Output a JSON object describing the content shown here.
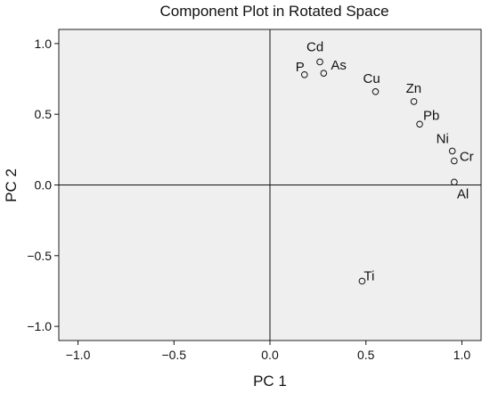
{
  "chart_data": {
    "type": "scatter",
    "title": "Component Plot in Rotated Space",
    "xlabel": "PC 1",
    "ylabel": "PC 2",
    "xlim": [
      -1.1,
      1.1
    ],
    "ylim": [
      -1.1,
      1.1
    ],
    "xticks": [
      -1.0,
      -0.5,
      0.0,
      0.5,
      1.0
    ],
    "yticks": [
      -1.0,
      -0.5,
      0.0,
      0.5,
      1.0
    ],
    "xtick_labels": [
      "−1.0",
      "−0.5",
      "0.0",
      "0.5",
      "1.0"
    ],
    "ytick_labels": [
      "−1.0",
      "−0.5",
      "0.0",
      "0.5",
      "1.0"
    ],
    "grid": false,
    "reference_lines": {
      "x": 0,
      "y": 0
    },
    "plot_background": "#efefef",
    "marker_color": "#111111",
    "points": [
      {
        "label": "Cd",
        "x": 0.26,
        "y": 0.87
      },
      {
        "label": "P",
        "x": 0.18,
        "y": 0.78
      },
      {
        "label": "As",
        "x": 0.28,
        "y": 0.79
      },
      {
        "label": "Cu",
        "x": 0.55,
        "y": 0.66
      },
      {
        "label": "Zn",
        "x": 0.75,
        "y": 0.59
      },
      {
        "label": "Pb",
        "x": 0.78,
        "y": 0.43
      },
      {
        "label": "Ni",
        "x": 0.95,
        "y": 0.24
      },
      {
        "label": "Cr",
        "x": 0.96,
        "y": 0.17
      },
      {
        "label": "Al",
        "x": 0.96,
        "y": 0.02
      },
      {
        "label": "Ti",
        "x": 0.48,
        "y": -0.68
      }
    ]
  }
}
